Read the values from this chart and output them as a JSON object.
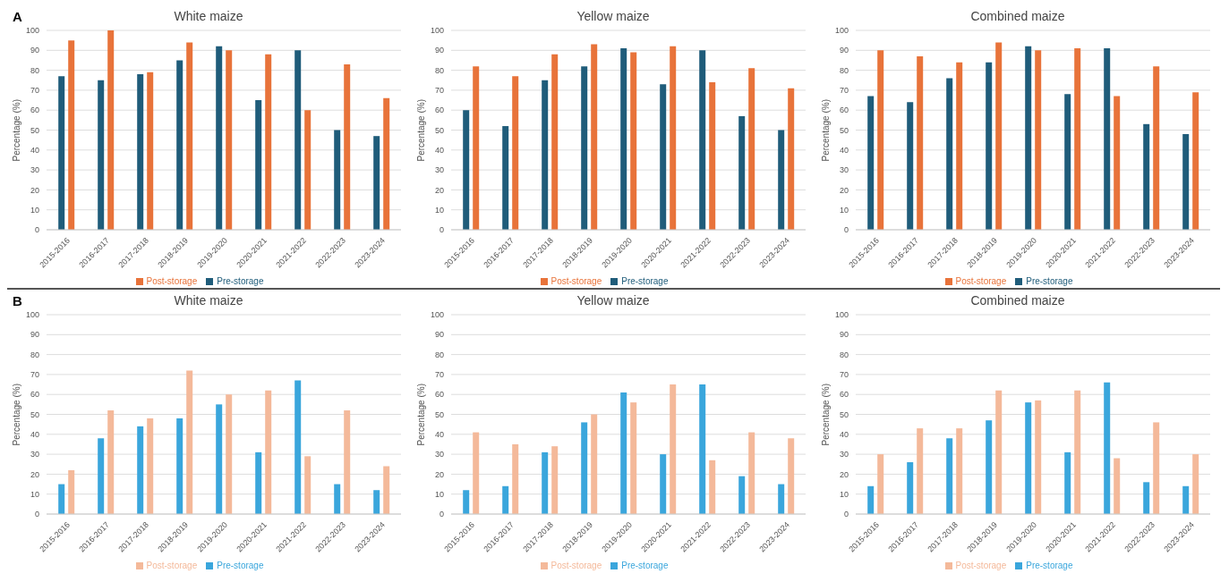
{
  "chart_data": [
    {
      "type": "bar",
      "title": "White maize",
      "annotations": [
        "A"
      ],
      "ylabel": "Percentage (%)",
      "categories": [
        "2015-2016",
        "2016-2017",
        "2017-2018",
        "2018-2019",
        "2019-2020",
        "2020-2021",
        "2021-2022",
        "2022-2023",
        "2023-2024"
      ],
      "series": [
        {
          "name": "Pre-storage",
          "color": "#1f5c7a",
          "values": [
            77,
            75,
            78,
            85,
            92,
            65,
            90,
            50,
            47
          ]
        },
        {
          "name": "Post-storage",
          "color": "#e8733a",
          "values": [
            95,
            100,
            79,
            94,
            90,
            88,
            60,
            83,
            66
          ]
        }
      ],
      "ylim": [
        0,
        100
      ],
      "yticks": [
        0,
        10,
        20,
        30,
        40,
        50,
        60,
        70,
        80,
        90,
        100
      ],
      "grid": "y",
      "legend": "bottom"
    },
    {
      "type": "bar",
      "title": "Yellow maize",
      "ylabel": "Percentage (%)",
      "categories": [
        "2015-2016",
        "2016-2017",
        "2017-2018",
        "2018-2019",
        "2019-2020",
        "2020-2021",
        "2021-2022",
        "2022-2023",
        "2023-2024"
      ],
      "series": [
        {
          "name": "Pre-storage",
          "color": "#1f5c7a",
          "values": [
            60,
            52,
            75,
            82,
            91,
            73,
            90,
            57,
            50
          ]
        },
        {
          "name": "Post-storage",
          "color": "#e8733a",
          "values": [
            82,
            77,
            88,
            93,
            89,
            92,
            74,
            81,
            71
          ]
        }
      ],
      "ylim": [
        0,
        100
      ],
      "yticks": [
        0,
        10,
        20,
        30,
        40,
        50,
        60,
        70,
        80,
        90,
        100
      ],
      "grid": "y",
      "legend": "bottom"
    },
    {
      "type": "bar",
      "title": "Combined maize",
      "ylabel": "Percentage (%)",
      "categories": [
        "2015-2016",
        "2016-2017",
        "2017-2018",
        "2018-2019",
        "2019-2020",
        "2020-2021",
        "2021-2022",
        "2022-2023",
        "2023-2024"
      ],
      "series": [
        {
          "name": "Pre-storage",
          "color": "#1f5c7a",
          "values": [
            67,
            64,
            76,
            84,
            92,
            68,
            91,
            53,
            48
          ]
        },
        {
          "name": "Post-storage",
          "color": "#e8733a",
          "values": [
            90,
            87,
            84,
            94,
            90,
            91,
            67,
            82,
            69
          ]
        }
      ],
      "ylim": [
        0,
        100
      ],
      "yticks": [
        0,
        10,
        20,
        30,
        40,
        50,
        60,
        70,
        80,
        90,
        100
      ],
      "grid": "y",
      "legend": "bottom"
    },
    {
      "type": "bar",
      "title": "White maize",
      "annotations": [
        "B"
      ],
      "ylabel": "Percentage (%)",
      "categories": [
        "2015-2016",
        "2016-2017",
        "2017-2018",
        "2018-2019",
        "2019-2020",
        "2020-2021",
        "2021-2022",
        "2022-2023",
        "2023-2024"
      ],
      "series": [
        {
          "name": "Pre-storage",
          "color": "#3aa6dc",
          "values": [
            15,
            38,
            44,
            48,
            55,
            31,
            67,
            15,
            12
          ]
        },
        {
          "name": "Post-storage",
          "color": "#f4b99a",
          "values": [
            22,
            52,
            48,
            72,
            60,
            62,
            29,
            52,
            24
          ]
        }
      ],
      "ylim": [
        0,
        100
      ],
      "yticks": [
        0,
        10,
        20,
        30,
        40,
        50,
        60,
        70,
        80,
        90,
        100
      ],
      "grid": "y",
      "legend": "bottom"
    },
    {
      "type": "bar",
      "title": "Yellow maize",
      "ylabel": "Percentage (%)",
      "categories": [
        "2015-2016",
        "2016-2017",
        "2017-2018",
        "2018-2019",
        "2019-2020",
        "2020-2021",
        "2021-2022",
        "2022-2023",
        "2023-2024"
      ],
      "series": [
        {
          "name": "Pre-storage",
          "color": "#3aa6dc",
          "values": [
            12,
            14,
            31,
            46,
            61,
            30,
            65,
            19,
            15
          ]
        },
        {
          "name": "Post-storage",
          "color": "#f4b99a",
          "values": [
            41,
            35,
            34,
            50,
            56,
            65,
            27,
            41,
            38
          ]
        }
      ],
      "ylim": [
        0,
        100
      ],
      "yticks": [
        0,
        10,
        20,
        30,
        40,
        50,
        60,
        70,
        80,
        90,
        100
      ],
      "grid": "y",
      "legend": "bottom"
    },
    {
      "type": "bar",
      "title": "Combined maize",
      "ylabel": "Percentage (%)",
      "categories": [
        "2015-2016",
        "2016-2017",
        "2017-2018",
        "2018-2019",
        "2019-2020",
        "2020-2021",
        "2021-2022",
        "2022-2023",
        "2023-2024"
      ],
      "series": [
        {
          "name": "Pre-storage",
          "color": "#3aa6dc",
          "values": [
            14,
            26,
            38,
            47,
            56,
            31,
            66,
            16,
            14
          ]
        },
        {
          "name": "Post-storage",
          "color": "#f4b99a",
          "values": [
            30,
            43,
            43,
            62,
            57,
            62,
            28,
            46,
            30
          ]
        }
      ],
      "ylim": [
        0,
        100
      ],
      "yticks": [
        0,
        10,
        20,
        30,
        40,
        50,
        60,
        70,
        80,
        90,
        100
      ],
      "grid": "y",
      "legend": "bottom"
    }
  ]
}
